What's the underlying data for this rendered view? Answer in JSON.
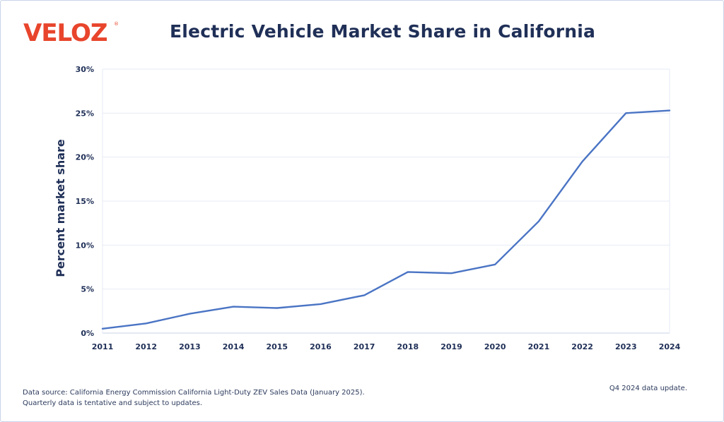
{
  "brand": {
    "logo_text": "VELOZ",
    "logo_mark": "®",
    "color": "#e8452c"
  },
  "header": {
    "title": "Electric Vehicle Market Share in California"
  },
  "footer": {
    "source_line1": "Data source: California Energy Commission California Light-Duty ZEV Sales Data (January 2025).",
    "source_line2": "Quarterly data is tentative and subject to updates.",
    "update_note": "Q4 2024 data update."
  },
  "chart_data": {
    "type": "line",
    "title": "Electric Vehicle Market Share in California",
    "xlabel": "",
    "ylabel": "Percent market share",
    "x": [
      2011,
      2012,
      2013,
      2014,
      2015,
      2016,
      2017,
      2018,
      2019,
      2020,
      2021,
      2022,
      2023,
      2024
    ],
    "y_ticks": [
      0,
      5,
      10,
      15,
      20,
      25,
      30
    ],
    "y_tick_format": "%",
    "ylim": [
      0,
      30
    ],
    "grid": true,
    "legend": "none",
    "series": [
      {
        "values": [
          0.5,
          1.1,
          2.2,
          3.0,
          2.85,
          3.3,
          4.3,
          6.95,
          6.8,
          7.8,
          12.7,
          19.5,
          25.0,
          25.3
        ],
        "color": "#4a74c4"
      }
    ]
  }
}
